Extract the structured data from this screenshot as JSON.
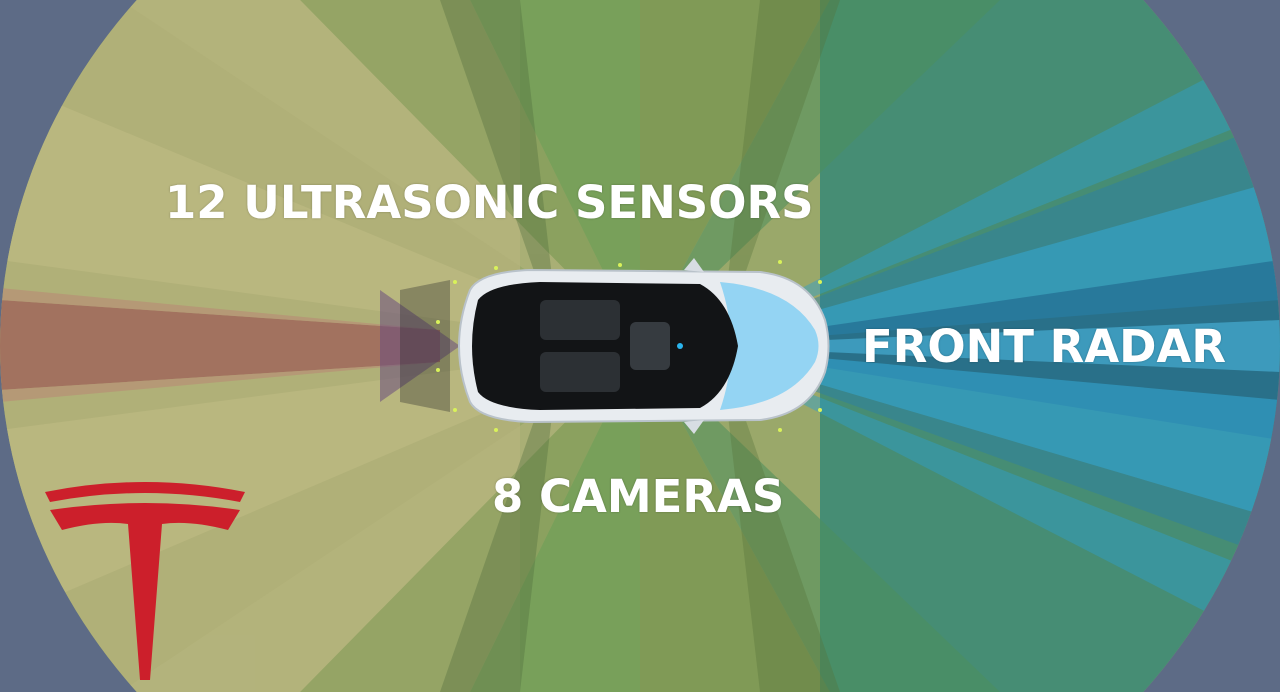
{
  "labels": {
    "ultrasonic": "12 ULTRASONIC SENSORS",
    "radar": "FRONT RADAR",
    "cameras": "8 CAMERAS"
  },
  "icons": {
    "logo": "tesla-logo-icon",
    "vehicle": "car-top-view-icon"
  },
  "colors": {
    "frame": "#5d6b86",
    "ultrasonic_zone": "#b7b678",
    "camera_green": "#5f9b4e",
    "camera_olive": "#7b8b49",
    "rear_camera": "#a0675a",
    "radar_blue": "#2f9fcf",
    "radar_dark": "#1e5f86",
    "logo_red": "#cc1f2b",
    "car_body": "#e8ecf0",
    "windshield": "#8fd3f2"
  }
}
